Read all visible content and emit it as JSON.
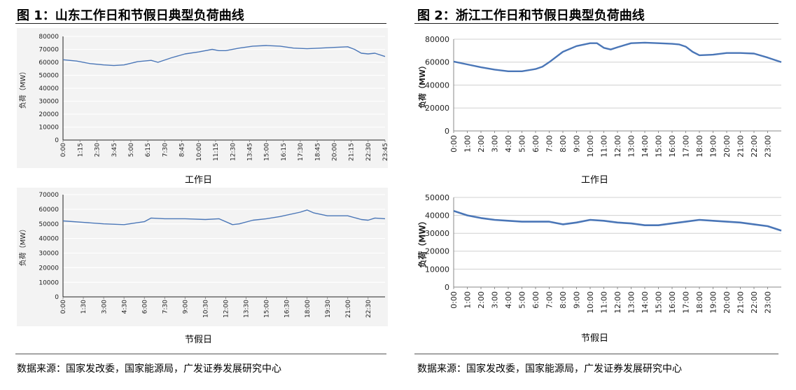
{
  "figures": [
    {
      "title": "图 1：山东工作日和节假日典型负荷曲线",
      "source": "数据来源：国家发改委，国家能源局，广发证券发展研究中心"
    },
    {
      "title": "图 2：浙江工作日和节假日典型负荷曲线",
      "source": "数据来源：国家发改委，国家能源局，广发证券发展研究中心"
    }
  ],
  "line_color": "#4a76b7",
  "chart_data": [
    {
      "type": "line",
      "title": "",
      "xlabel": "工作日",
      "ylabel": "负荷（MW）",
      "ylim": [
        0,
        80000
      ],
      "yticks": [
        0,
        10000,
        20000,
        30000,
        40000,
        50000,
        60000,
        70000,
        80000
      ],
      "xticks": [
        "0:00",
        "1:15",
        "2:30",
        "3:45",
        "5:00",
        "6:15",
        "7:30",
        "8:45",
        "10:00",
        "11:15",
        "12:30",
        "13:45",
        "15:00",
        "16:15",
        "17:30",
        "18:45",
        "20:00",
        "21:15",
        "22:30",
        "23:45"
      ],
      "x": [
        0,
        1,
        2,
        3,
        3.75,
        4.5,
        5.5,
        6.5,
        7,
        8,
        9,
        10,
        11,
        11.5,
        12,
        13,
        14,
        15,
        16,
        17,
        18,
        19,
        20,
        21,
        21.5,
        22,
        22.5,
        23,
        23.75
      ],
      "values": [
        62000,
        61000,
        59000,
        58000,
        57500,
        58000,
        60500,
        61500,
        60000,
        63500,
        66500,
        68000,
        70000,
        69000,
        69000,
        71000,
        72500,
        73000,
        72500,
        71000,
        70500,
        71000,
        71500,
        72000,
        70000,
        67000,
        66500,
        67000,
        64500
      ]
    },
    {
      "type": "line",
      "title": "",
      "xlabel": "节假日",
      "ylabel": "负荷（MW）",
      "ylim": [
        0,
        70000
      ],
      "yticks": [
        0,
        10000,
        20000,
        30000,
        40000,
        50000,
        60000,
        70000
      ],
      "xticks": [
        "0:00",
        "1:30",
        "3:00",
        "4:30",
        "6:00",
        "7:30",
        "9:00",
        "10:30",
        "12:00",
        "13:30",
        "15:00",
        "16:30",
        "18:00",
        "19:30",
        "21:00",
        "22:30"
      ],
      "x": [
        0,
        1.5,
        3,
        4.5,
        6,
        6.5,
        7.5,
        9,
        10.5,
        11.5,
        12.5,
        13,
        14,
        15,
        16,
        17.5,
        18,
        18.5,
        19.5,
        21,
        22,
        22.5,
        23,
        23.75
      ],
      "values": [
        52000,
        51000,
        50000,
        49500,
        51500,
        54000,
        53500,
        53500,
        53000,
        53500,
        49500,
        50000,
        52500,
        53500,
        55000,
        58000,
        59500,
        57500,
        55500,
        55500,
        53000,
        52500,
        54000,
        53500
      ]
    },
    {
      "type": "line",
      "title": "",
      "xlabel": "工作日",
      "ylabel": "负荷（MW）",
      "ylim": [
        0,
        80000
      ],
      "yticks": [
        0,
        20000,
        40000,
        60000,
        80000
      ],
      "xticks": [
        "0:00",
        "1:00",
        "2:00",
        "3:00",
        "4:00",
        "5:00",
        "6:00",
        "7:00",
        "8:00",
        "9:00",
        "10:00",
        "11:00",
        "12:00",
        "13:00",
        "14:00",
        "15:00",
        "16:00",
        "17:00",
        "18:00",
        "19:00",
        "20:00",
        "21:00",
        "22:00",
        "23:00"
      ],
      "x": [
        0,
        1,
        2,
        3,
        4,
        5,
        6,
        6.5,
        7,
        8,
        9,
        10,
        10.5,
        11,
        11.5,
        12,
        13,
        14,
        15,
        16,
        16.5,
        17,
        17.5,
        18,
        19,
        20,
        21,
        22,
        23,
        24
      ],
      "values": [
        60500,
        58000,
        55500,
        53500,
        52000,
        52000,
        54000,
        56000,
        60000,
        69000,
        74000,
        76500,
        76500,
        72500,
        71000,
        73000,
        76500,
        77000,
        76500,
        76000,
        75500,
        73500,
        69000,
        66000,
        66500,
        68000,
        68000,
        67500,
        64000,
        60000
      ]
    },
    {
      "type": "line",
      "title": "",
      "xlabel": "节假日",
      "ylabel": "负荷（MW）",
      "ylim": [
        0,
        50000
      ],
      "yticks": [
        0,
        10000,
        20000,
        30000,
        40000,
        50000
      ],
      "xticks": [
        "0:00",
        "1:00",
        "2:00",
        "3:00",
        "4:00",
        "5:00",
        "6:00",
        "7:00",
        "8:00",
        "9:00",
        "10:00",
        "11:00",
        "12:00",
        "13:00",
        "14:00",
        "15:00",
        "16:00",
        "17:00",
        "18:00",
        "19:00",
        "20:00",
        "21:00",
        "22:00",
        "23:00"
      ],
      "x": [
        0,
        1,
        2,
        3,
        4,
        5,
        6,
        7,
        8,
        9,
        10,
        11,
        12,
        13,
        14,
        15,
        16,
        17,
        18,
        19,
        20,
        21,
        22,
        23,
        24
      ],
      "values": [
        42500,
        40000,
        38500,
        37500,
        37000,
        36500,
        36500,
        36500,
        35000,
        36000,
        37500,
        37000,
        36000,
        35500,
        34500,
        34500,
        35500,
        36500,
        37500,
        37000,
        36500,
        36000,
        35000,
        34000,
        31500
      ]
    }
  ]
}
